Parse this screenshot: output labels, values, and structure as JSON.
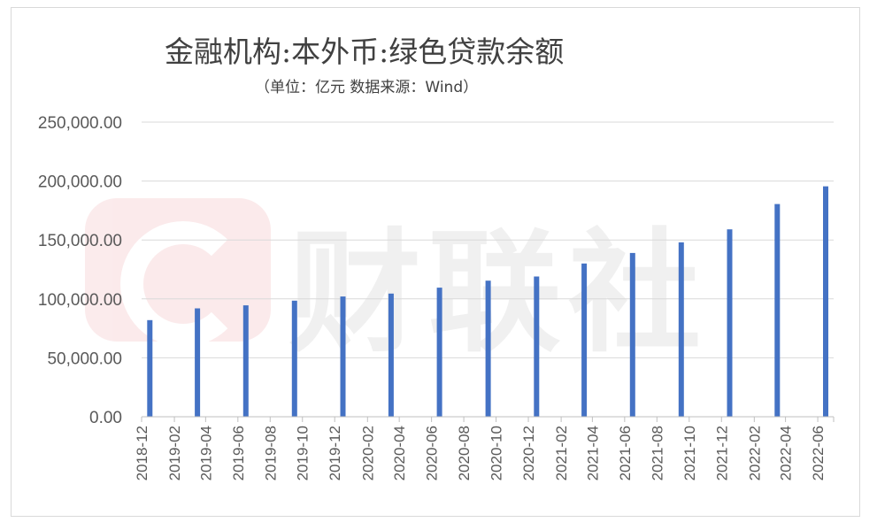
{
  "chart_data": {
    "type": "bar",
    "title": "金融机构:本外币:绿色贷款余额",
    "subtitle": "（单位：亿元 数据来源：Wind）",
    "xlabel": "",
    "ylabel": "",
    "ylim": [
      0,
      250000
    ],
    "yticks": [
      "0.00",
      "50,000.00",
      "100,000.00",
      "150,000.00",
      "200,000.00",
      "250,000.00"
    ],
    "categories": [
      "2018-12",
      "2019-02",
      "2019-04",
      "2019-06",
      "2019-08",
      "2019-10",
      "2019-12",
      "2020-02",
      "2020-04",
      "2020-06",
      "2020-08",
      "2020-10",
      "2020-12",
      "2021-02",
      "2021-04",
      "2021-06",
      "2021-08",
      "2021-10",
      "2021-12",
      "2022-02",
      "2022-04",
      "2022-06"
    ],
    "bars": [
      {
        "date": "2018-12",
        "value": 82000
      },
      {
        "date": "2019-03",
        "value": 92000
      },
      {
        "date": "2019-06",
        "value": 94500
      },
      {
        "date": "2019-09",
        "value": 98500
      },
      {
        "date": "2019-12",
        "value": 102000
      },
      {
        "date": "2020-03",
        "value": 104500
      },
      {
        "date": "2020-06",
        "value": 109500
      },
      {
        "date": "2020-09",
        "value": 115500
      },
      {
        "date": "2020-12",
        "value": 119000
      },
      {
        "date": "2021-03",
        "value": 130000
      },
      {
        "date": "2021-06",
        "value": 139000
      },
      {
        "date": "2021-09",
        "value": 148000
      },
      {
        "date": "2021-12",
        "value": 159000
      },
      {
        "date": "2022-03",
        "value": 180500
      },
      {
        "date": "2022-06",
        "value": 195500
      }
    ],
    "grid": true,
    "legend": "none",
    "bar_color": "#4472c4"
  },
  "watermark": {
    "text": "财联社",
    "logo_color": "#d6262b"
  }
}
